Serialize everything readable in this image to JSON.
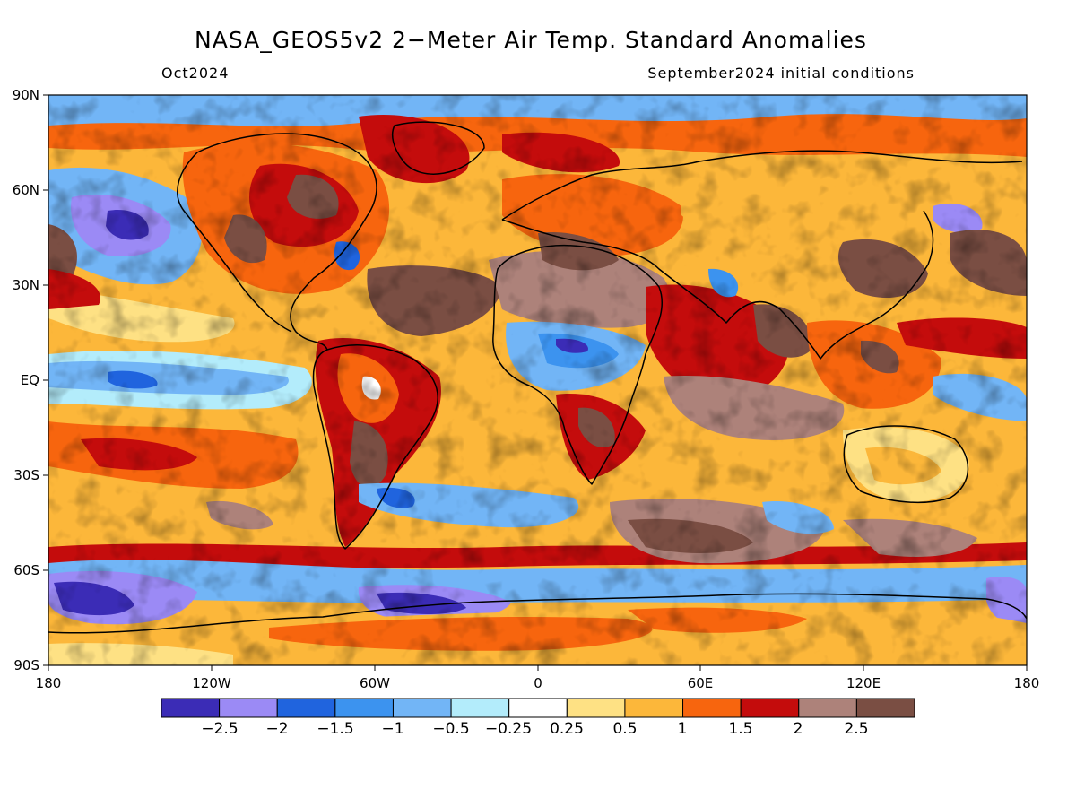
{
  "title": "NASA_GEOS5v2 2−Meter Air Temp. Standard Anomalies",
  "subtitle_left": "Oct2024",
  "subtitle_right": "September2024 initial conditions",
  "axes": {
    "lat_ticks": [
      "90N",
      "60N",
      "30N",
      "EQ",
      "30S",
      "60S",
      "90S"
    ],
    "lon_ticks": [
      "180",
      "120W",
      "60W",
      "0",
      "60E",
      "120E",
      "180"
    ]
  },
  "colorbar": {
    "colors": [
      "#3b2cb6",
      "#9b8af5",
      "#2064de",
      "#3c93ef",
      "#72b5f6",
      "#b3ecfb",
      "#ffffff",
      "#fee184",
      "#fcb73a",
      "#f7650e",
      "#c40c0c",
      "#ad827a",
      "#7a4e43"
    ],
    "labels": [
      "−2.5",
      "−2",
      "−1.5",
      "−1",
      "−0.5",
      "−0.25",
      "0.25",
      "0.5",
      "1",
      "1.5",
      "2",
      "2.5"
    ]
  }
}
